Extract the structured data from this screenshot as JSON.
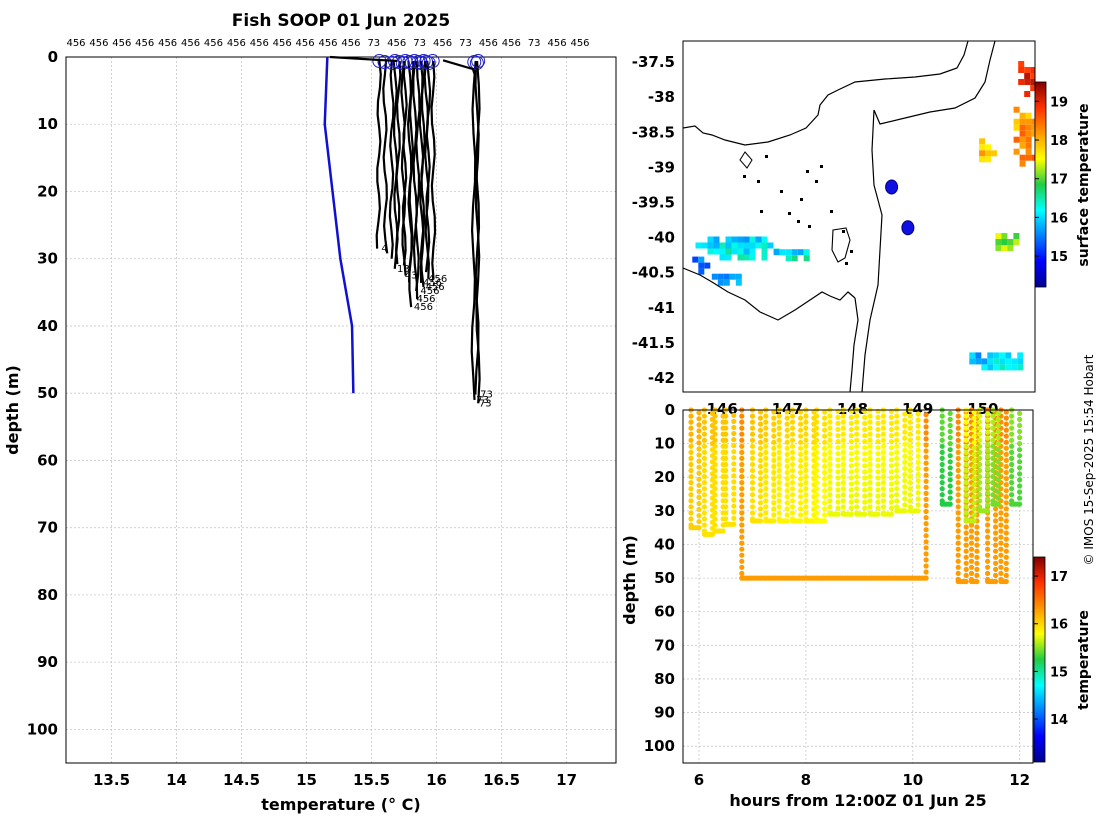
{
  "credit": "© IMOS 15-Sep-2025 15:54 Hobart",
  "chart_data": [
    {
      "type": "line",
      "title": "Fish SOOP 01 Jun 2025",
      "xlabel": "temperature (° C)",
      "ylabel": "depth (m)",
      "xlim": [
        13.15,
        17.38
      ],
      "ylim": [
        105,
        0
      ],
      "xticks": [
        13.5,
        14,
        14.5,
        15,
        15.5,
        16,
        16.5,
        17
      ],
      "yticks": [
        0,
        10,
        20,
        30,
        40,
        50,
        60,
        70,
        80,
        90,
        100
      ],
      "grid": true,
      "top_labels": [
        "456",
        "456",
        "456",
        "456",
        "456",
        "456",
        "456",
        "456",
        "456",
        "456",
        "456",
        "456",
        "456",
        "73",
        "456",
        "73",
        "456",
        "73",
        "456",
        "456",
        "73",
        "456",
        "456"
      ],
      "climatology": {
        "color": "#1010d0",
        "points": [
          [
            15.16,
            0
          ],
          [
            15.15,
            5
          ],
          [
            15.14,
            10
          ],
          [
            15.2,
            20
          ],
          [
            15.26,
            30
          ],
          [
            15.35,
            40
          ],
          [
            15.36,
            50
          ]
        ]
      },
      "profiles": [
        {
          "t": 15.56,
          "max": 28.5,
          "label": "4"
        },
        {
          "t": 15.6,
          "max": 29.2,
          "label": ""
        },
        {
          "t": 15.66,
          "max": 30.0,
          "label": ""
        },
        {
          "t": 15.68,
          "max": 31.5,
          "label": "13"
        },
        {
          "t": 15.71,
          "max": 30.8,
          "label": ""
        },
        {
          "t": 15.74,
          "max": 32.5,
          "label": "43"
        },
        {
          "t": 15.76,
          "max": 31.0,
          "label": ""
        },
        {
          "t": 15.79,
          "max": 33.5,
          "label": ""
        },
        {
          "t": 15.81,
          "max": 37.2,
          "label": "456"
        },
        {
          "t": 15.83,
          "max": 36.0,
          "label": "456"
        },
        {
          "t": 15.86,
          "max": 34.8,
          "label": "456"
        },
        {
          "t": 15.88,
          "max": 33.6,
          "label": "456"
        },
        {
          "t": 15.9,
          "max": 34.2,
          "label": "456"
        },
        {
          "t": 15.92,
          "max": 33.0,
          "label": "456"
        },
        {
          "t": 15.94,
          "max": 32.0,
          "label": ""
        },
        {
          "t": 15.97,
          "max": 33.0,
          "label": ""
        },
        {
          "t": 16.29,
          "max": 51.0,
          "label": "73"
        },
        {
          "t": 16.31,
          "max": 51.5,
          "label": "73"
        },
        {
          "t": 16.32,
          "max": 50.2,
          "label": "73"
        }
      ],
      "tail_starts": [
        [
          15.2,
          0
        ],
        [
          16.28,
          1.5
        ]
      ],
      "circles_color": "#2020d0"
    },
    {
      "type": "heatmap",
      "name": "surface temperature map",
      "ylim": [
        -42.2,
        -37.2
      ],
      "yticks": [
        -37.5,
        -38,
        -38.5,
        -39,
        -39.5,
        -40,
        -40.5,
        -41,
        -41.5,
        -42
      ],
      "xlim": [
        145.4,
        150.8
      ],
      "xticks": [
        146,
        147,
        148,
        149,
        150
      ],
      "colorbar": {
        "label": "surface temperature",
        "min": 14.2,
        "max": 19.5,
        "ticks": [
          15,
          16,
          17,
          18,
          19
        ]
      },
      "blobs": [
        {
          "lon": 146.2,
          "lat": -40.1,
          "rx": 0.7,
          "ry": 0.2,
          "v": 16.1
        },
        {
          "lon": 147.0,
          "lat": -40.2,
          "rx": 0.3,
          "ry": 0.12,
          "v": 16.2
        },
        {
          "lon": 145.6,
          "lat": -40.3,
          "rx": 0.15,
          "ry": 0.2,
          "v": 15.5
        },
        {
          "lon": 146.0,
          "lat": -40.55,
          "rx": 0.25,
          "ry": 0.12,
          "v": 15.9
        },
        {
          "lon": 150.2,
          "lat": -41.7,
          "rx": 0.5,
          "ry": 0.15,
          "v": 16.0
        },
        {
          "lon": 150.3,
          "lat": -40.0,
          "rx": 0.2,
          "ry": 0.15,
          "v": 17.2
        },
        {
          "lon": 150.0,
          "lat": -38.7,
          "rx": 0.15,
          "ry": 0.2,
          "v": 17.8
        },
        {
          "lon": 150.6,
          "lat": -38.5,
          "rx": 0.22,
          "ry": 0.45,
          "v": 18.2
        },
        {
          "lon": 150.65,
          "lat": -37.7,
          "rx": 0.2,
          "ry": 0.3,
          "v": 19.0
        }
      ],
      "points": [
        [
          148.6,
          -39.28
        ],
        [
          148.85,
          -39.86
        ]
      ]
    },
    {
      "type": "scatter",
      "xlabel": "hours from 12:00Z 01 Jun 25",
      "ylabel": "depth (m)",
      "xlim": [
        5.7,
        12.25
      ],
      "ylim": [
        105,
        0
      ],
      "xticks": [
        6,
        8,
        10,
        12
      ],
      "yticks": [
        0,
        10,
        20,
        30,
        40,
        50,
        60,
        70,
        80,
        90,
        100
      ],
      "colorbar": {
        "label": "temperature",
        "min": 13.1,
        "max": 17.4,
        "ticks": [
          14,
          15,
          16,
          17
        ]
      },
      "casts": [
        {
          "x0": 5.85,
          "x1": 6.0,
          "max": 35,
          "v": 16.1
        },
        {
          "x0": 6.1,
          "x1": 6.25,
          "max": 37,
          "v": 16.0
        },
        {
          "x0": 6.3,
          "x1": 6.45,
          "max": 36,
          "v": 16.0
        },
        {
          "x0": 6.5,
          "x1": 6.65,
          "max": 34,
          "v": 16.0
        },
        {
          "x0": 7.0,
          "x1": 7.15,
          "max": 33,
          "v": 16.0
        },
        {
          "x0": 7.25,
          "x1": 7.4,
          "max": 33,
          "v": 15.95
        },
        {
          "x0": 7.5,
          "x1": 7.65,
          "max": 33,
          "v": 15.9
        },
        {
          "x0": 7.75,
          "x1": 7.9,
          "max": 33,
          "v": 15.9
        },
        {
          "x0": 8.0,
          "x1": 8.15,
          "max": 33,
          "v": 15.9
        },
        {
          "x0": 8.2,
          "x1": 8.35,
          "max": 33,
          "v": 15.85
        },
        {
          "x0": 8.45,
          "x1": 8.6,
          "max": 31,
          "v": 15.8
        },
        {
          "x0": 8.7,
          "x1": 8.85,
          "max": 31,
          "v": 15.8
        },
        {
          "x0": 8.95,
          "x1": 9.1,
          "max": 31,
          "v": 15.8
        },
        {
          "x0": 9.2,
          "x1": 9.35,
          "max": 31,
          "v": 15.8
        },
        {
          "x0": 9.45,
          "x1": 9.6,
          "max": 31,
          "v": 15.8
        },
        {
          "x0": 9.7,
          "x1": 9.85,
          "max": 30,
          "v": 15.8
        },
        {
          "x0": 9.95,
          "x1": 10.1,
          "max": 30,
          "v": 15.8
        },
        {
          "x0": 10.55,
          "x1": 10.7,
          "max": 28,
          "v": 15.3
        },
        {
          "x0": 11.0,
          "x1": 11.15,
          "max": 33,
          "v": 15.7
        },
        {
          "x0": 11.25,
          "x1": 11.4,
          "max": 30,
          "v": 15.6
        },
        {
          "x0": 11.5,
          "x1": 11.6,
          "max": 28,
          "v": 15.5
        },
        {
          "x0": 11.85,
          "x1": 12.0,
          "max": 28,
          "v": 15.4
        }
      ],
      "deep": [
        {
          "x0": 6.8,
          "x1": 10.25,
          "max": 50,
          "v": 16.3
        },
        {
          "x0": 10.85,
          "x1": 11.0,
          "max": 51,
          "v": 16.3
        },
        {
          "x0": 11.1,
          "x1": 11.2,
          "max": 51,
          "v": 16.3
        },
        {
          "x0": 11.4,
          "x1": 11.55,
          "max": 51,
          "v": 16.3
        },
        {
          "x0": 11.65,
          "x1": 11.75,
          "max": 51,
          "v": 16.3
        }
      ]
    }
  ]
}
